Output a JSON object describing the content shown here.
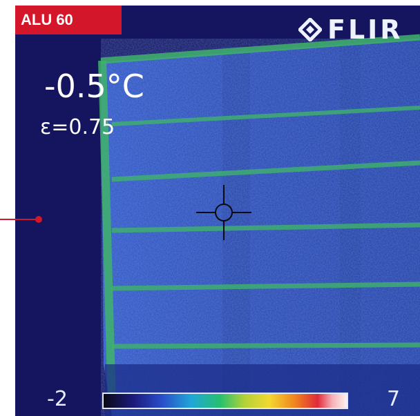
{
  "tag": {
    "label": "ALU 60",
    "color": "#d3162a"
  },
  "camera": {
    "brand": "FLIR",
    "logo_icon": "flir-diamond-logo",
    "spot_temperature": "-0.5°C",
    "emissivity": "ε=0.75"
  },
  "scale": {
    "min_label": "-2",
    "max_label": "7",
    "min_value": -2,
    "max_value": 7,
    "palette": "iron"
  },
  "colors": {
    "background": "#15145e",
    "panel": "#2e4ab4",
    "frame_green": "#3fb36a",
    "accent": "#d3162a"
  }
}
